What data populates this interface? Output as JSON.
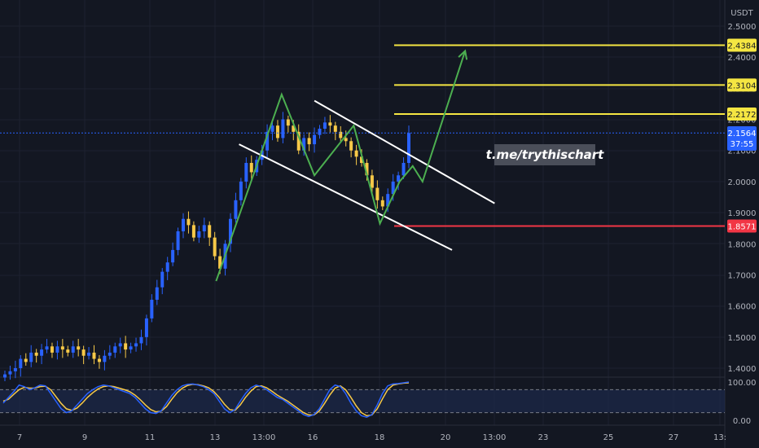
{
  "colors": {
    "background": "#131722",
    "grid": "#1e2230",
    "bull": "#2962ff",
    "bear": "#f7c948",
    "target_line": "#f5e642",
    "support_line": "#f23645",
    "current_price": "#2962ff",
    "channel": "#ffffff",
    "projection": "#4caf50",
    "stoch_k": "#2962ff",
    "stoch_d": "#f7c948"
  },
  "price_axis": {
    "currency": "USDT",
    "ticks": [
      "2.5000",
      "2.4000",
      "2.3000",
      "2.2000",
      "2.1000",
      "2.0000",
      "1.9000",
      "1.8000",
      "1.7000",
      "1.6000",
      "1.5000",
      "1.4000"
    ]
  },
  "oscillator_axis": {
    "ticks": [
      "100.00",
      "0.00"
    ]
  },
  "time_axis": {
    "ticks": [
      "7",
      "9",
      "11",
      "13",
      "13:00",
      "16",
      "18",
      "20",
      "13:00",
      "23",
      "25",
      "27",
      "13:"
    ]
  },
  "watermark": "t.me/trythischart",
  "chart_data": {
    "type": "line",
    "title": "",
    "symbol_quote": "USDT",
    "ylim": [
      1.36,
      2.53
    ],
    "oscillator_ylim": [
      0,
      100
    ],
    "oscillator_bands": [
      80,
      20
    ],
    "current_price": {
      "value": "2.1564",
      "countdown": "37:55"
    },
    "levels": [
      {
        "label": "2.4384",
        "value": 2.4384,
        "role": "target"
      },
      {
        "label": "2.3104",
        "value": 2.3104,
        "role": "target"
      },
      {
        "label": "2.2172",
        "value": 2.2172,
        "role": "target"
      },
      {
        "label": "1.8571",
        "value": 1.8571,
        "role": "support"
      }
    ],
    "price_series_close": [
      1.38,
      1.39,
      1.4,
      1.43,
      1.42,
      1.45,
      1.44,
      1.46,
      1.47,
      1.45,
      1.47,
      1.46,
      1.45,
      1.47,
      1.46,
      1.44,
      1.45,
      1.43,
      1.42,
      1.44,
      1.45,
      1.47,
      1.48,
      1.46,
      1.47,
      1.48,
      1.5,
      1.56,
      1.62,
      1.66,
      1.71,
      1.74,
      1.78,
      1.84,
      1.88,
      1.86,
      1.82,
      1.84,
      1.86,
      1.82,
      1.76,
      1.72,
      1.8,
      1.88,
      1.94,
      2.0,
      2.06,
      2.03,
      2.07,
      2.1,
      2.16,
      2.18,
      2.14,
      2.2,
      2.18,
      2.16,
      2.1,
      2.14,
      2.12,
      2.15,
      2.17,
      2.19,
      2.18,
      2.16,
      2.14,
      2.13,
      2.1,
      2.08,
      2.06,
      2.02,
      1.98,
      1.94,
      1.92,
      1.96,
      2.0,
      2.02,
      2.06,
      2.156
    ],
    "channel": {
      "upper": [
        [
          16,
          2.26
        ],
        [
          21.5,
          1.93
        ]
      ],
      "lower": [
        [
          13.7,
          2.12
        ],
        [
          20.2,
          1.78
        ]
      ]
    },
    "projection_path": [
      [
        13.0,
        1.68
      ],
      [
        15.0,
        2.28
      ],
      [
        16.0,
        2.02
      ],
      [
        17.2,
        2.18
      ],
      [
        18.0,
        1.865
      ],
      [
        18.6,
        2.0
      ],
      [
        19.0,
        2.05
      ],
      [
        19.3,
        2.0
      ],
      [
        20.6,
        2.42
      ]
    ],
    "stoch_k": [
      45,
      60,
      75,
      92,
      88,
      80,
      85,
      92,
      90,
      70,
      50,
      30,
      20,
      25,
      40,
      55,
      70,
      80,
      88,
      92,
      90,
      85,
      80,
      75,
      70,
      60,
      45,
      30,
      20,
      18,
      25,
      45,
      65,
      80,
      90,
      94,
      95,
      92,
      88,
      80,
      70,
      50,
      30,
      20,
      28,
      50,
      70,
      85,
      92,
      88,
      80,
      70,
      60,
      55,
      45,
      35,
      25,
      15,
      10,
      15,
      30,
      55,
      80,
      92,
      88,
      70,
      45,
      25,
      12,
      8,
      15,
      40,
      70,
      90,
      95,
      96,
      98,
      100
    ],
    "stoch_d": [
      50,
      55,
      68,
      80,
      86,
      84,
      84,
      88,
      89,
      80,
      62,
      44,
      30,
      26,
      32,
      45,
      60,
      72,
      82,
      88,
      90,
      88,
      84,
      80,
      75,
      66,
      54,
      40,
      28,
      22,
      24,
      36,
      55,
      72,
      84,
      91,
      94,
      93,
      90,
      85,
      75,
      60,
      42,
      28,
      26,
      40,
      60,
      76,
      88,
      90,
      85,
      76,
      66,
      58,
      50,
      40,
      30,
      20,
      14,
      14,
      24,
      44,
      66,
      84,
      90,
      80,
      60,
      38,
      20,
      12,
      14,
      30,
      56,
      80,
      92,
      95,
      97,
      98
    ]
  }
}
